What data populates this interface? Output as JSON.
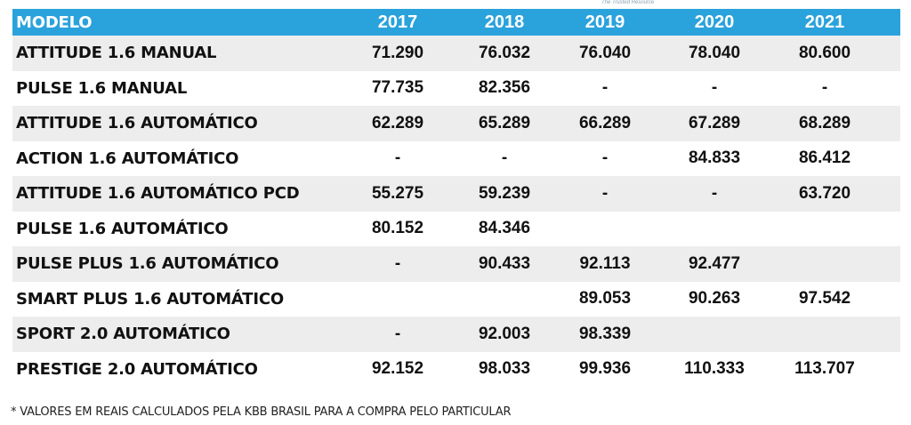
{
  "tagline": "The Trusted Resource",
  "table": {
    "headers": [
      "MODELO",
      "2017",
      "2018",
      "2019",
      "2020",
      "2021"
    ],
    "rows": [
      {
        "model": "ATTITUDE 1.6 MANUAL",
        "values": [
          "71.290",
          "76.032",
          "76.040",
          "78.040",
          "80.600"
        ]
      },
      {
        "model": "PULSE 1.6 MANUAL",
        "values": [
          "77.735",
          "82.356",
          "-",
          "-",
          "-"
        ]
      },
      {
        "model": "ATTITUDE 1.6 AUTOMÁTICO",
        "values": [
          "62.289",
          "65.289",
          "66.289",
          "67.289",
          "68.289"
        ]
      },
      {
        "model": "ACTION 1.6 AUTOMÁTICO",
        "values": [
          "-",
          "-",
          "-",
          "84.833",
          "86.412"
        ]
      },
      {
        "model": "ATTITUDE 1.6 AUTOMÁTICO PCD",
        "values": [
          "55.275",
          "59.239",
          "-",
          "-",
          "63.720"
        ]
      },
      {
        "model": "PULSE 1.6 AUTOMÁTICO",
        "values": [
          "80.152",
          "84.346",
          "",
          "",
          ""
        ]
      },
      {
        "model": "PULSE PLUS 1.6 AUTOMÁTICO",
        "values": [
          "-",
          "90.433",
          "92.113",
          "92.477",
          ""
        ]
      },
      {
        "model": "SMART PLUS 1.6 AUTOMÁTICO",
        "values": [
          "",
          "",
          "89.053",
          "90.263",
          "97.542"
        ]
      },
      {
        "model": "SPORT 2.0 AUTOMÁTICO",
        "values": [
          "-",
          "92.003",
          "98.339",
          "",
          ""
        ]
      },
      {
        "model": "PRESTIGE 2.0 AUTOMÁTICO",
        "values": [
          "92.152",
          "98.033",
          "99.936",
          "110.333",
          "113.707"
        ]
      }
    ]
  },
  "footnote": "* VALORES EM REAIS CALCULADOS PELA KBB BRASIL PARA A COMPRA PELO PARTICULAR",
  "colors": {
    "header_bg": "#2aa2dc",
    "alt_row_bg": "#ededed"
  }
}
